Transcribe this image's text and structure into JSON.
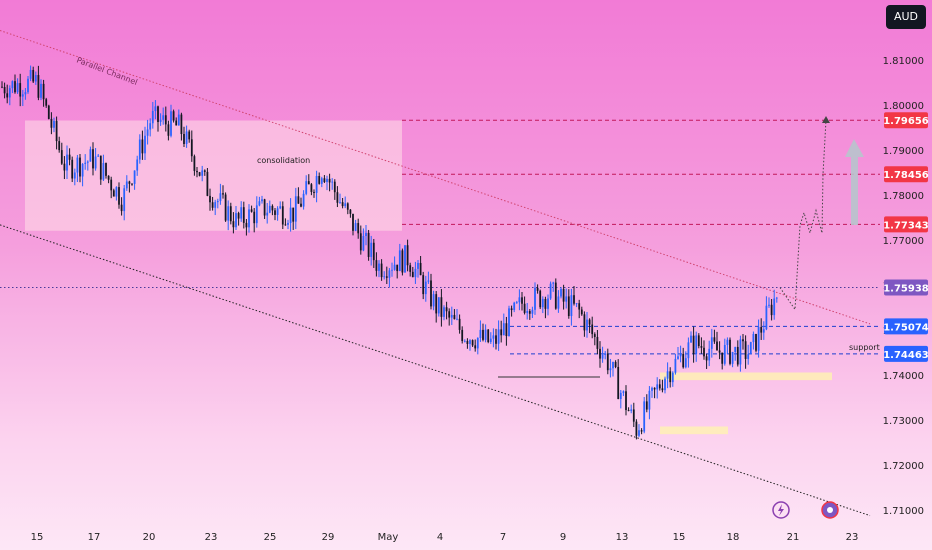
{
  "currency": "AUD",
  "annotations": {
    "channel": "Parallel Channel",
    "consolidation": "consolidation",
    "support": "support"
  },
  "colors": {
    "bull": "#2962ff",
    "bear": "#131722",
    "red_label": "#f23645",
    "blue_label": "#2962ff",
    "last_label": "#7e57c2"
  },
  "chart_data": {
    "type": "candlestick",
    "ylim": [
      1.7055,
      1.8215
    ],
    "y_ticks": [
      "1.81000",
      "1.80000",
      "1.79000",
      "1.78000",
      "1.77000",
      "1.76000",
      "1.75000",
      "1.74000",
      "1.73000",
      "1.72000",
      "1.71000"
    ],
    "x_ticks": [
      "15",
      "17",
      "20",
      "23",
      "25",
      "29",
      "May",
      "4",
      "7",
      "9",
      "13",
      "15",
      "18",
      "21",
      "23"
    ],
    "levels": [
      {
        "value": 1.79656,
        "label": "1.79656",
        "color": "red"
      },
      {
        "value": 1.78456,
        "label": "1.78456",
        "color": "red"
      },
      {
        "value": 1.77343,
        "label": "1.77343",
        "color": "red"
      },
      {
        "value": 1.75938,
        "label": "1.75938",
        "color": "purple"
      },
      {
        "value": 1.75074,
        "label": "1.75074",
        "color": "blue"
      },
      {
        "value": 1.74463,
        "label": "1.74463",
        "color": "blue"
      }
    ],
    "price_path": [
      [
        "15",
        1.805
      ],
      [
        "16",
        1.786
      ],
      [
        "17",
        1.788
      ],
      [
        "18",
        1.779
      ],
      [
        "20",
        1.797
      ],
      [
        "21",
        1.795
      ],
      [
        "23",
        1.781
      ],
      [
        "24",
        1.774
      ],
      [
        "25",
        1.777
      ],
      [
        "26",
        1.776
      ],
      [
        "29",
        1.786
      ],
      [
        "30",
        1.774
      ],
      [
        "May",
        1.764
      ],
      [
        "2",
        1.766
      ],
      [
        "4",
        1.755
      ],
      [
        "6",
        1.749
      ],
      [
        "7",
        1.747
      ],
      [
        "8",
        1.756
      ],
      [
        "9",
        1.758
      ],
      [
        "10",
        1.754
      ],
      [
        "13",
        1.743
      ],
      [
        "14",
        1.728
      ],
      [
        "15",
        1.74
      ],
      [
        "16",
        1.747
      ],
      [
        "17",
        1.745
      ],
      [
        "18",
        1.745
      ],
      [
        "20",
        1.759
      ]
    ]
  }
}
